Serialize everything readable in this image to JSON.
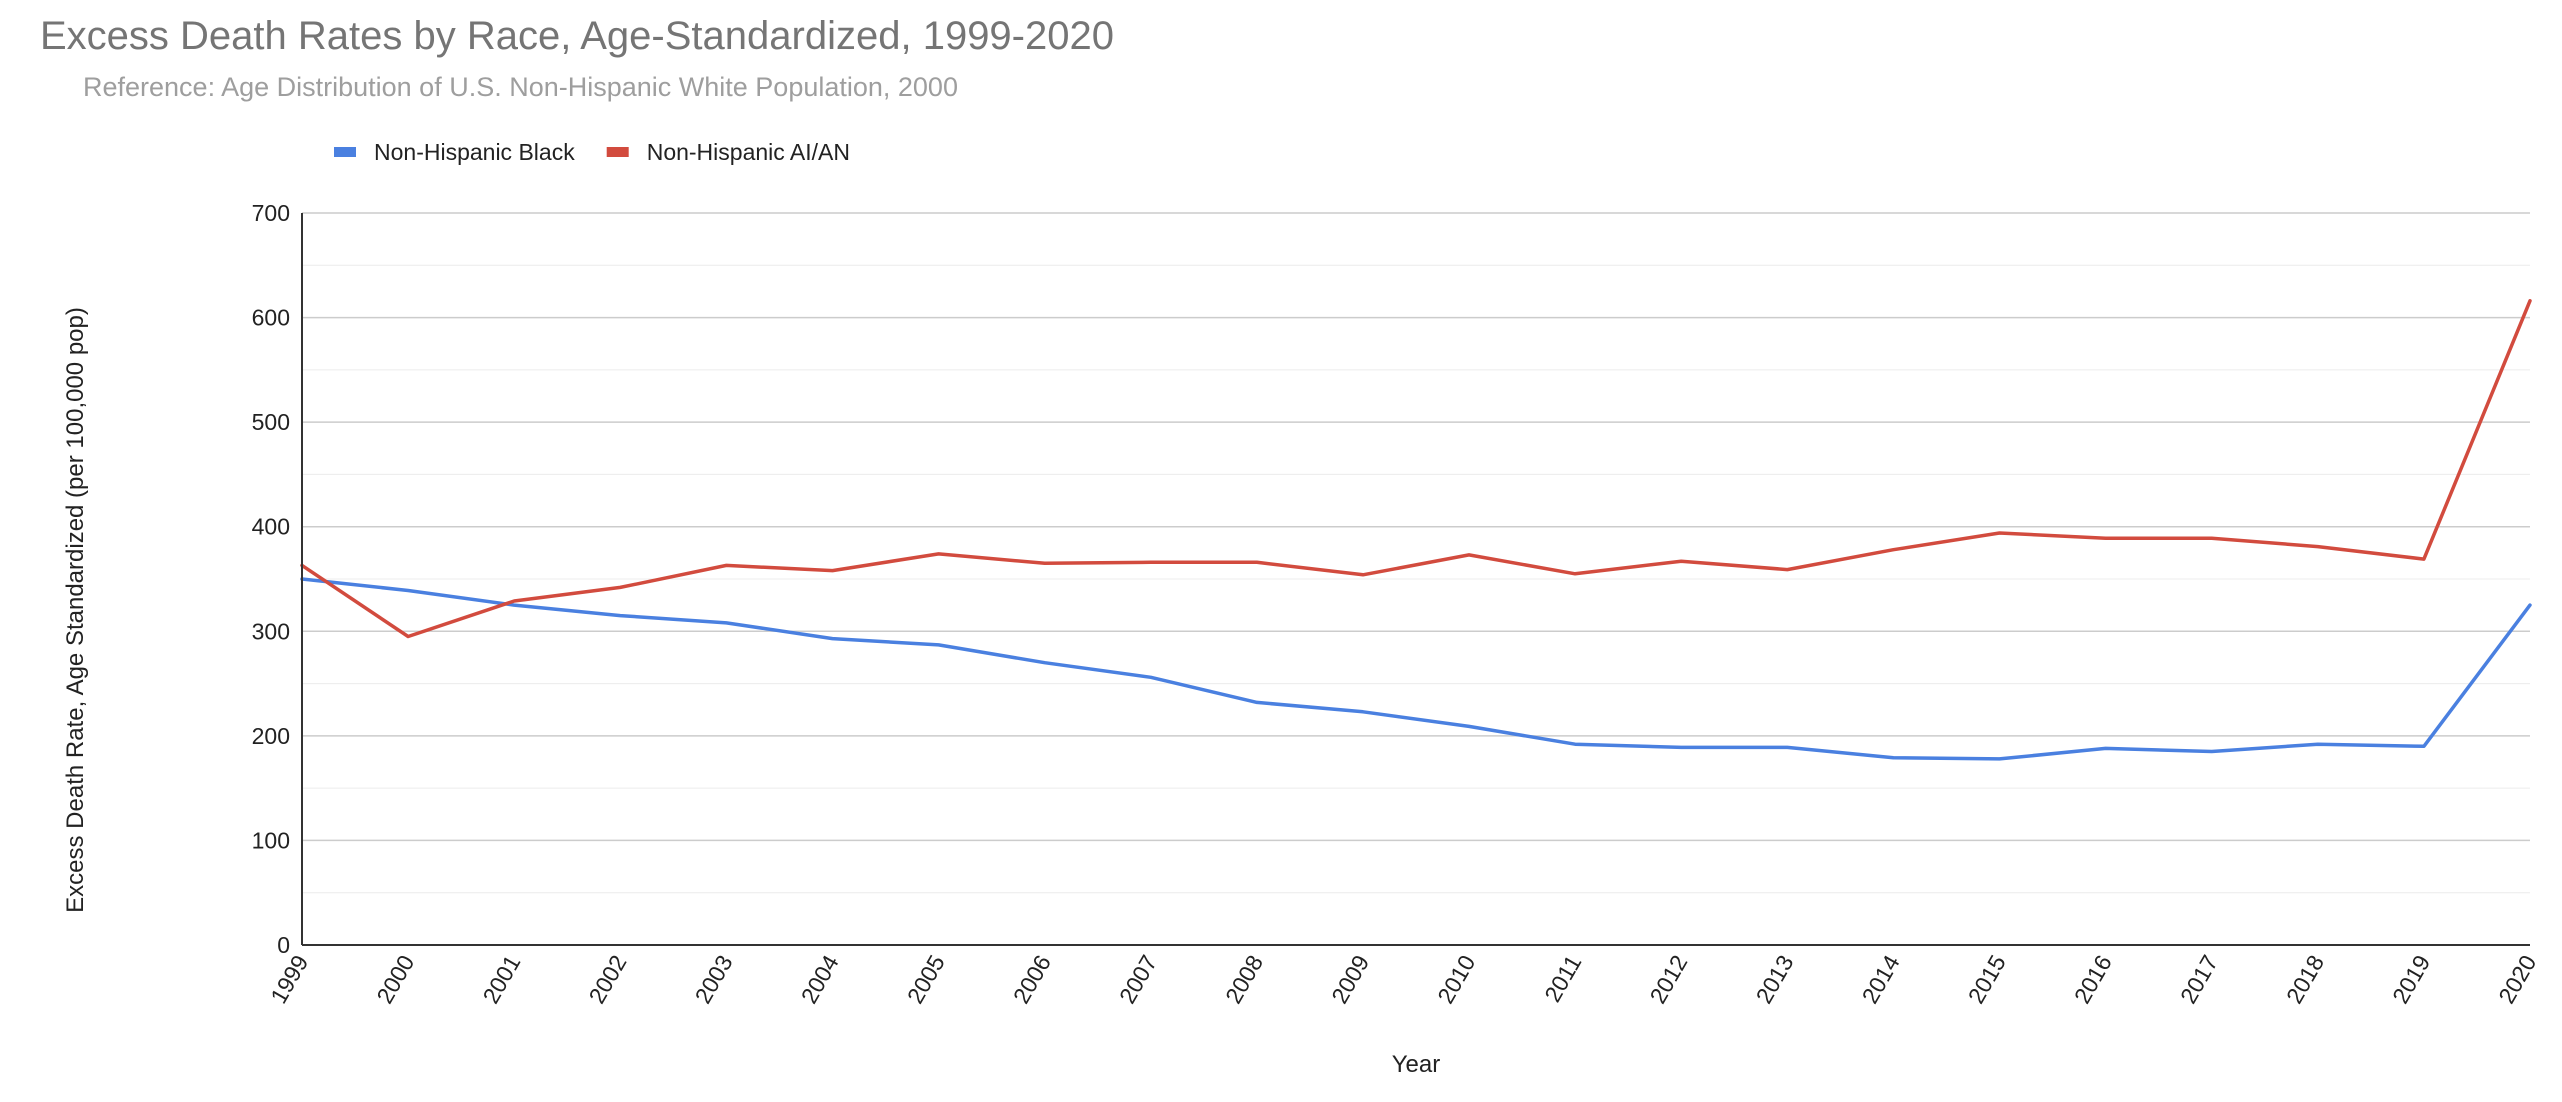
{
  "chart_data": {
    "type": "line",
    "title": "Excess Death Rates by Race, Age-Standardized, 1999-2020",
    "subtitle": "Reference: Age Distribution of U.S. Non-Hispanic White Population, 2000",
    "xlabel": "Year",
    "ylabel": "Excess Death Rate, Age Standardized (per 100,000 pop)",
    "ylim": [
      0,
      700
    ],
    "yticks": [
      0,
      100,
      200,
      300,
      400,
      500,
      600,
      700
    ],
    "grid": true,
    "legend_position": "top-left",
    "x": [
      "1999",
      "2000",
      "2001",
      "2002",
      "2003",
      "2004",
      "2005",
      "2006",
      "2007",
      "2008",
      "2009",
      "2010",
      "2011",
      "2012",
      "2013",
      "2014",
      "2015",
      "2016",
      "2017",
      "2018",
      "2019",
      "2020"
    ],
    "series": [
      {
        "name": "Non-Hispanic Black",
        "color": "#4a80e0",
        "values": [
          350,
          339,
          325,
          315,
          308,
          293,
          287,
          270,
          256,
          232,
          223,
          209,
          192,
          189,
          189,
          179,
          178,
          188,
          185,
          192,
          190,
          325
        ]
      },
      {
        "name": "Non-Hispanic AI/AN",
        "color": "#d24b3e",
        "values": [
          363,
          295,
          329,
          342,
          363,
          358,
          374,
          365,
          366,
          366,
          354,
          373,
          355,
          367,
          359,
          378,
          394,
          389,
          389,
          381,
          369,
          616
        ]
      }
    ]
  }
}
